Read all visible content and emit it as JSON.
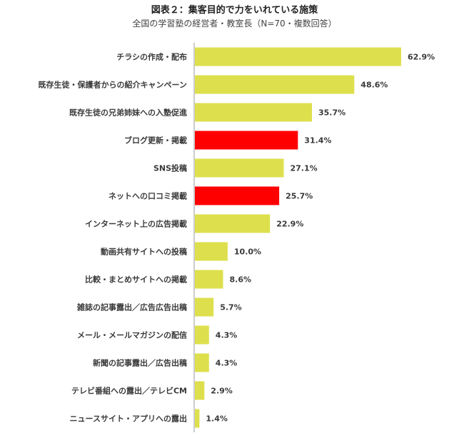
{
  "chart_data": {
    "type": "bar",
    "orientation": "horizontal",
    "title": "図表２：集客目的で力をいれている施策",
    "subtitle": "全国の学習塾の経営者・教室長（N=70・複数回答）",
    "unit": "%",
    "categories": [
      "チラシの作成・配布",
      "既存生徒・保護者からの紹介キャンペーン",
      "既存生徒の兄弟姉妹への入塾促進",
      "ブログ更新・掲載",
      "SNS投稿",
      "ネットへの口コミ掲載",
      "インターネット上の広告掲載",
      "動画共有サイトへの投稿",
      "比較・まとめサイトへの掲載",
      "雑誌の記事露出／広告広告出稿",
      "メール・メールマガジンの配信",
      "新聞の記事露出／広告出稿",
      "テレビ番組への露出／テレビCM",
      "ニュースサイト・アプリへの露出"
    ],
    "values": [
      62.9,
      48.6,
      35.7,
      31.4,
      27.1,
      25.7,
      22.9,
      10.0,
      8.6,
      5.7,
      4.3,
      4.3,
      2.9,
      1.4
    ],
    "value_labels": [
      "62.9%",
      "48.6%",
      "35.7%",
      "31.4%",
      "27.1%",
      "25.7%",
      "22.9%",
      "10.0%",
      "8.6%",
      "5.7%",
      "4.3%",
      "4.3%",
      "2.9%",
      "1.4%"
    ],
    "highlighted": [
      3,
      5
    ],
    "colors": {
      "bar": "#dde04c",
      "highlight": "#ff0000",
      "axis": "#999999"
    },
    "xlim": [
      0,
      65
    ],
    "grid": false,
    "legend": "none"
  }
}
